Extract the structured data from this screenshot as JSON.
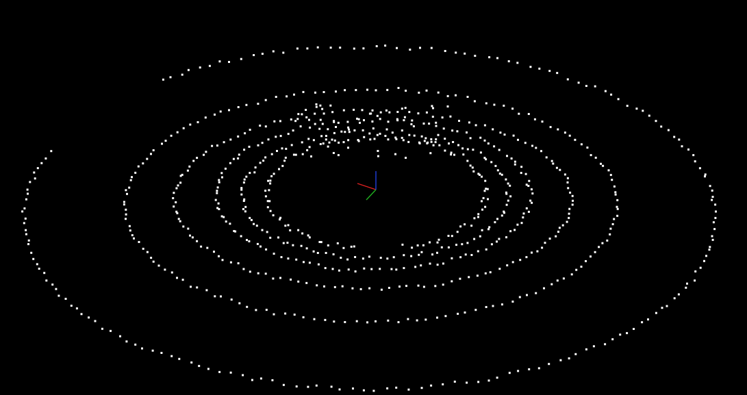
{
  "viewport": {
    "background": "#000000",
    "point_color": "#ffffff",
    "view": "3d-point-cloud"
  },
  "axes_gizmo": {
    "x_color": "#e02020",
    "y_color": "#20b020",
    "z_color": "#2040e0"
  },
  "point_cloud": {
    "shape": "concentric-rings",
    "ring_count": 5
  }
}
